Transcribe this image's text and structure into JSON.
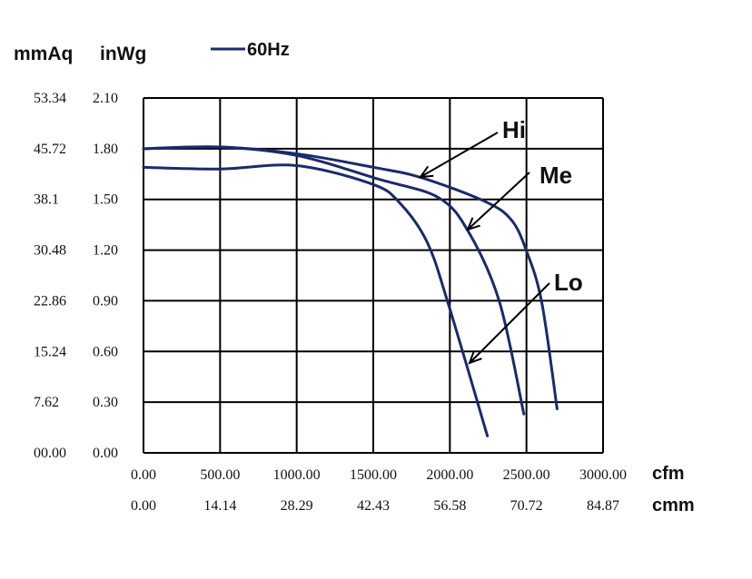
{
  "chart_data": {
    "type": "line",
    "title": "",
    "legend": {
      "label": "60Hz",
      "placement": "top"
    },
    "y_units": {
      "left": "mmAq",
      "right": "inWg"
    },
    "x_units": {
      "primary": "cfm",
      "secondary": "cmm"
    },
    "xlim": [
      0,
      3000
    ],
    "ylim": [
      0,
      2.1
    ],
    "grid": true,
    "x_ticks": [
      "0.00",
      "500.00",
      "1000.00",
      "1500.00",
      "2000.00",
      "2500.00",
      "3000.00"
    ],
    "x_ticks_cmm": [
      "0.00",
      "14.14",
      "28.29",
      "42.43",
      "56.58",
      "70.72",
      "84.87"
    ],
    "y_ticks_inwg": [
      "0.00",
      "0.30",
      "0.60",
      "0.90",
      "1.20",
      "1.50",
      "1.80",
      "2.10"
    ],
    "y_ticks_mmaq": [
      "00.00",
      "7.62",
      "15.24",
      "22.86",
      "30.48",
      "38.1",
      "45.72",
      "53.34"
    ],
    "series": [
      {
        "name": "Hi",
        "points": [
          [
            0,
            1.8
          ],
          [
            500,
            1.81
          ],
          [
            1000,
            1.77
          ],
          [
            1500,
            1.69
          ],
          [
            1810,
            1.63
          ],
          [
            2224,
            1.49
          ],
          [
            2400,
            1.38
          ],
          [
            2500,
            1.195
          ],
          [
            2600,
            0.89
          ],
          [
            2700,
            0.26
          ]
        ]
      },
      {
        "name": "Me",
        "points": [
          [
            0,
            1.8
          ],
          [
            500,
            1.81
          ],
          [
            1000,
            1.76
          ],
          [
            1533,
            1.62
          ],
          [
            1927,
            1.51
          ],
          [
            2127,
            1.3
          ],
          [
            2325,
            0.89
          ],
          [
            2483,
            0.23
          ]
        ]
      },
      {
        "name": "Lo",
        "points": [
          [
            0,
            1.69
          ],
          [
            500,
            1.68
          ],
          [
            1000,
            1.7
          ],
          [
            1494,
            1.59
          ],
          [
            1672,
            1.48
          ],
          [
            1850,
            1.25
          ],
          [
            1987,
            0.89
          ],
          [
            2245,
            0.1
          ]
        ]
      }
    ],
    "annotations": [
      {
        "text": "Hi",
        "series": "Hi"
      },
      {
        "text": "Me",
        "series": "Me"
      },
      {
        "text": "Lo",
        "series": "Lo"
      }
    ],
    "colors": {
      "series": "#1a2a6c",
      "grid": "#000000"
    }
  }
}
